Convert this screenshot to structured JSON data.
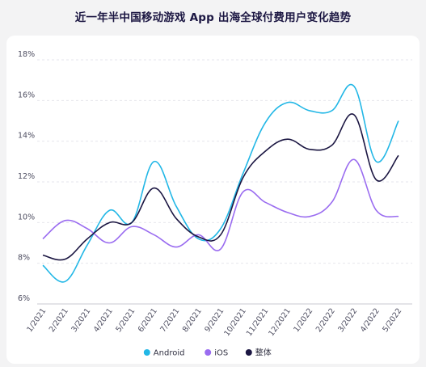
{
  "chart_data": {
    "type": "line",
    "title": "近一年半中国移动游戏 App 出海全球付费用户变化趋势",
    "categories": [
      "1/2021",
      "2/2021",
      "3/2021",
      "4/2021",
      "5/2021",
      "6/2021",
      "7/2021",
      "8/2021",
      "9/2021",
      "10/2021",
      "11/2021",
      "12/2021",
      "1/2022",
      "2/2022",
      "3/2022",
      "4/2022",
      "5/2022"
    ],
    "y_ticks": [
      "6%",
      "8%",
      "10%",
      "12%",
      "14%",
      "16%",
      "18%"
    ],
    "ylim": [
      6,
      18
    ],
    "y_unit": "%",
    "grid": true,
    "legend_position": "bottom",
    "series": [
      {
        "name": "Android",
        "color": "#22b7e6",
        "values": [
          7.9,
          7.1,
          8.9,
          10.6,
          10.0,
          13.0,
          10.8,
          9.2,
          9.7,
          12.4,
          14.9,
          15.9,
          15.5,
          15.5,
          16.7,
          13.0,
          15.0
        ]
      },
      {
        "name": "iOS",
        "color": "#9a6cf0",
        "values": [
          9.2,
          10.1,
          9.7,
          9.0,
          9.8,
          9.4,
          8.8,
          9.4,
          8.7,
          11.5,
          11.0,
          10.5,
          10.3,
          11.0,
          13.1,
          10.6,
          10.3
        ]
      },
      {
        "name": "整体",
        "color": "#1b1642",
        "values": [
          8.4,
          8.2,
          9.2,
          10.0,
          10.0,
          11.7,
          10.2,
          9.3,
          9.4,
          12.2,
          13.5,
          14.1,
          13.6,
          13.8,
          15.3,
          12.1,
          13.3
        ]
      }
    ]
  }
}
